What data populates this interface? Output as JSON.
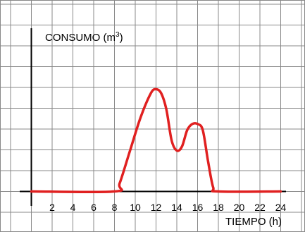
{
  "chart_data": {
    "type": "line",
    "title": "",
    "ylabel": "CONSUMO (m",
    "ylabel_sup": "3",
    "ylabel_close": ")",
    "xlabel": "TIEMPO (h)",
    "xlim": [
      -2,
      25
    ],
    "x_ticks": [
      2,
      4,
      6,
      8,
      10,
      12,
      14,
      16,
      18,
      20,
      22,
      24
    ],
    "x_tick_labels": [
      "2",
      "4",
      "6",
      "8",
      "10",
      "12",
      "14",
      "16",
      "18",
      "20",
      "22",
      "24"
    ],
    "grid": true,
    "series": [
      {
        "color": "#e02020",
        "x": [
          0,
          8,
          8.5,
          9.5,
          10.5,
          11.5,
          12,
          12.5,
          13,
          13.5,
          14,
          14.5,
          15,
          15.5,
          16,
          16.5,
          17,
          17.5,
          18,
          24
        ],
        "y": [
          0,
          0,
          0.4,
          2,
          3.6,
          4.8,
          5,
          4.8,
          4,
          2.5,
          2,
          2.2,
          3,
          3.3,
          3.3,
          3,
          1.5,
          0.2,
          0,
          0
        ]
      }
    ]
  },
  "colors": {
    "grid": "#888888",
    "axis": "#000000",
    "line": "#e02020"
  }
}
